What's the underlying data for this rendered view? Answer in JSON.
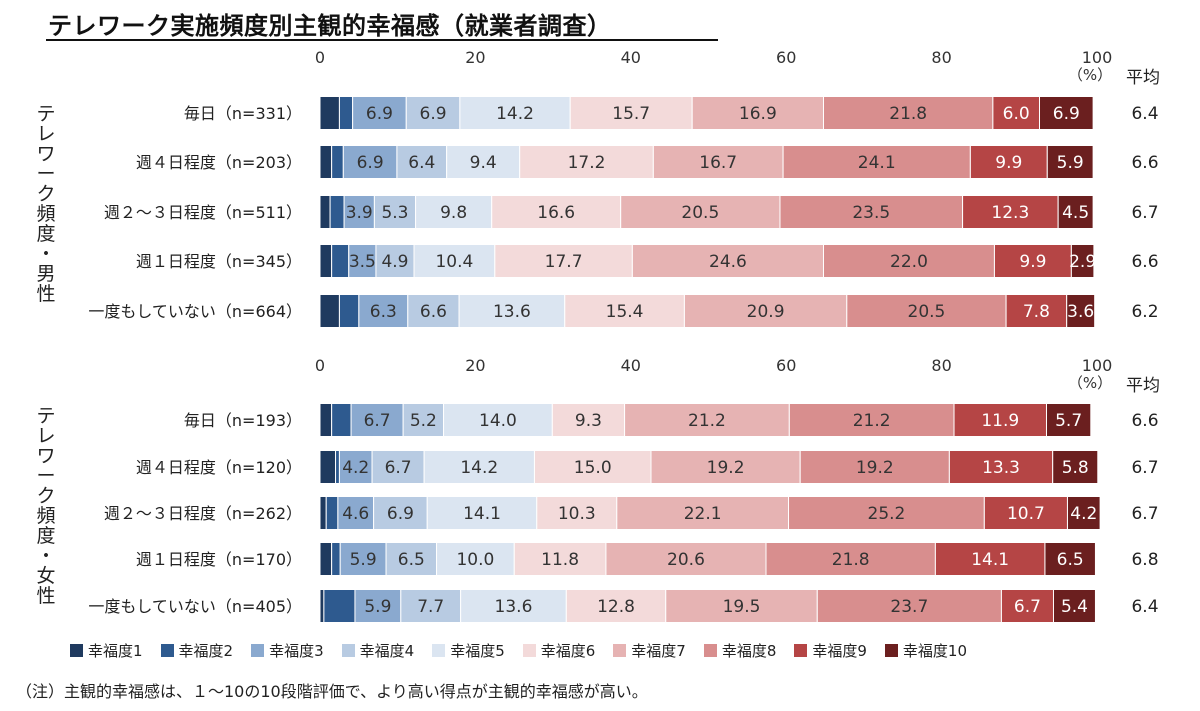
{
  "title": "テレワーク実施頻度別主観的幸福感（就業者調査）",
  "note": "（注）主観的幸福感は、１～10の10段階評価で、より高い得点が主観的幸福感が高い。",
  "colors": [
    "#1f3a5f",
    "#2e5a8f",
    "#8aa9cf",
    "#b8cbe2",
    "#dbe5f1",
    "#f3dada",
    "#e6b3b3",
    "#d88e8e",
    "#b54545",
    "#6b1f1f"
  ],
  "chart_data": [
    {
      "type": "bar",
      "orientation": "horizontal-stacked",
      "group_label": "テレワーク頻度・男性",
      "xlim": [
        0,
        100
      ],
      "xticks": [
        "0",
        "20",
        "40",
        "60",
        "80",
        "100"
      ],
      "unit_label": "（%）",
      "avg_header": "平均",
      "categories": [
        "毎日（n=331）",
        "週４日程度（n=203）",
        "週２～３日程度（n=511）",
        "週１日程度（n=345）",
        "一度もしていない（n=664）"
      ],
      "averages": [
        "6.4",
        "6.6",
        "6.7",
        "6.6",
        "6.2"
      ],
      "series": [
        {
          "name": "幸福度1",
          "values": [
            2.5,
            1.5,
            1.3,
            1.5,
            2.5
          ]
        },
        {
          "name": "幸福度2",
          "values": [
            1.7,
            1.5,
            1.8,
            2.2,
            2.5
          ]
        },
        {
          "name": "幸福度3",
          "values": [
            6.9,
            6.9,
            3.9,
            3.5,
            6.3
          ]
        },
        {
          "name": "幸福度4",
          "values": [
            6.9,
            6.4,
            5.3,
            4.9,
            6.6
          ]
        },
        {
          "name": "幸福度5",
          "values": [
            14.2,
            9.4,
            9.8,
            10.4,
            13.6
          ]
        },
        {
          "name": "幸福度6",
          "values": [
            15.7,
            17.2,
            16.6,
            17.7,
            15.4
          ]
        },
        {
          "name": "幸福度7",
          "values": [
            16.9,
            16.7,
            20.5,
            24.6,
            20.9
          ]
        },
        {
          "name": "幸福度8",
          "values": [
            21.8,
            24.1,
            23.5,
            22.0,
            20.5
          ]
        },
        {
          "name": "幸福度9",
          "values": [
            6.0,
            9.9,
            12.3,
            9.9,
            7.8
          ]
        },
        {
          "name": "幸福度10",
          "values": [
            6.9,
            5.9,
            4.5,
            2.9,
            3.6
          ]
        }
      ],
      "value_labels_from_series_index": 2
    },
    {
      "type": "bar",
      "orientation": "horizontal-stacked",
      "group_label": "テレワーク頻度・女性",
      "xlim": [
        0,
        100
      ],
      "xticks": [
        "0",
        "20",
        "40",
        "60",
        "80",
        "100"
      ],
      "unit_label": "（%）",
      "avg_header": "平均",
      "categories": [
        "毎日（n=193）",
        "週４日程度（n=120）",
        "週２～３日程度（n=262）",
        "週１日程度（n=170）",
        "一度もしていない（n=405）"
      ],
      "averages": [
        "6.6",
        "6.7",
        "6.7",
        "6.8",
        "6.4"
      ],
      "series": [
        {
          "name": "幸福度1",
          "values": [
            1.5,
            2.0,
            0.8,
            1.5,
            0.5
          ]
        },
        {
          "name": "幸福度2",
          "values": [
            2.5,
            0.5,
            1.5,
            1.1,
            4.0
          ]
        },
        {
          "name": "幸福度3",
          "values": [
            6.7,
            4.2,
            4.6,
            5.9,
            5.9
          ]
        },
        {
          "name": "幸福度4",
          "values": [
            5.2,
            6.7,
            6.9,
            6.5,
            7.7
          ]
        },
        {
          "name": "幸福度5",
          "values": [
            14.0,
            14.2,
            14.1,
            10.0,
            13.6
          ]
        },
        {
          "name": "幸福度6",
          "values": [
            9.3,
            15.0,
            10.3,
            11.8,
            12.8
          ]
        },
        {
          "name": "幸福度7",
          "values": [
            21.2,
            19.2,
            22.1,
            20.6,
            19.5
          ]
        },
        {
          "name": "幸福度8",
          "values": [
            21.2,
            19.2,
            25.2,
            21.8,
            23.7
          ]
        },
        {
          "name": "幸福度9",
          "values": [
            11.9,
            13.3,
            10.7,
            14.1,
            6.7
          ]
        },
        {
          "name": "幸福度10",
          "values": [
            5.7,
            5.8,
            4.2,
            6.5,
            5.4
          ]
        }
      ],
      "value_labels_from_series_index": 2
    }
  ],
  "legend": [
    "幸福度1",
    "幸福度2",
    "幸福度3",
    "幸福度4",
    "幸福度5",
    "幸福度6",
    "幸福度7",
    "幸福度8",
    "幸福度9",
    "幸福度10"
  ]
}
